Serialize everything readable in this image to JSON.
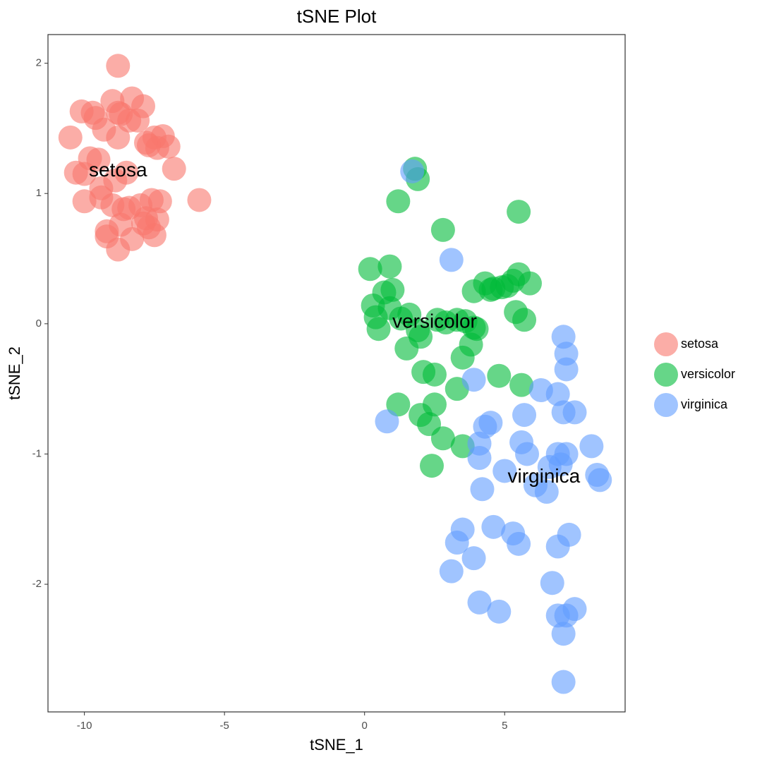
{
  "chart_data": {
    "type": "scatter",
    "title": "tSNE Plot",
    "xlabel": "tSNE_1",
    "ylabel": "tSNE_2",
    "xlim": [
      -11.3,
      9.3
    ],
    "ylim": [
      -2.98,
      2.22
    ],
    "xticks": [
      -10,
      -5,
      0,
      5
    ],
    "yticks": [
      -2,
      -1,
      0,
      1,
      2
    ],
    "grid": false,
    "legend": "right",
    "colors": {
      "setosa": "#F8766D",
      "versicolor": "#00BA38",
      "virginica": "#619CFF"
    },
    "series": [
      {
        "name": "setosa",
        "x": [
          -8.8,
          -10.5,
          -10.1,
          -9.7,
          -9.6,
          -9.0,
          -8.7,
          -8.3,
          -7.9,
          -7.5,
          -7.2,
          -9.3,
          -8.8,
          -8.4,
          -8.1,
          -7.8,
          -10.3,
          -9.8,
          -9.4,
          -8.9,
          -8.5,
          -7.7,
          -7.4,
          -7.0,
          -10.0,
          -9.4,
          -9.0,
          -8.6,
          -7.9,
          -7.6,
          -7.3,
          -6.8,
          -10.0,
          -9.5,
          -9.2,
          -8.7,
          -8.3,
          -7.8,
          -7.5,
          -5.9,
          -9.2,
          -8.8,
          -8.4,
          -8.0,
          -7.7,
          -7.4,
          -8.8
        ],
        "y": [
          1.98,
          1.43,
          1.63,
          1.62,
          1.58,
          1.71,
          1.61,
          1.73,
          1.67,
          1.43,
          1.44,
          1.49,
          1.43,
          1.56,
          1.56,
          1.39,
          1.16,
          1.27,
          1.04,
          1.1,
          1.16,
          1.37,
          1.35,
          1.36,
          0.94,
          0.97,
          0.91,
          0.88,
          0.77,
          0.95,
          0.94,
          1.19,
          1.15,
          1.26,
          0.67,
          0.76,
          0.65,
          0.81,
          0.68,
          0.95,
          0.71,
          0.57,
          0.89,
          0.91,
          0.74,
          0.8,
          1.62
        ]
      },
      {
        "name": "versicolor",
        "x": [
          1.8,
          1.9,
          1.2,
          2.8,
          5.5,
          0.2,
          0.9,
          0.7,
          1.0,
          0.3,
          0.4,
          0.5,
          0.9,
          1.3,
          1.6,
          1.9,
          2.0,
          2.6,
          2.9,
          3.3,
          3.6,
          3.9,
          4.3,
          4.6,
          4.9,
          5.3,
          5.5,
          5.9,
          3.9,
          4.5,
          5.1,
          5.4,
          5.7,
          1.5,
          2.1,
          2.5,
          3.5,
          3.8,
          4.0,
          4.8,
          5.6,
          1.2,
          2.0,
          2.3,
          2.5,
          2.8,
          3.3,
          3.5,
          2.4
        ],
        "y": [
          1.19,
          1.11,
          0.94,
          0.72,
          0.86,
          0.42,
          0.44,
          0.24,
          0.26,
          0.14,
          0.05,
          -0.04,
          0.12,
          0.04,
          0.07,
          -0.05,
          -0.1,
          0.03,
          0.01,
          0.03,
          0.02,
          0.25,
          0.31,
          0.27,
          0.28,
          0.33,
          0.38,
          0.31,
          -0.03,
          0.26,
          0.29,
          0.09,
          0.03,
          -0.19,
          -0.37,
          -0.39,
          -0.26,
          -0.16,
          -0.04,
          -0.4,
          -0.47,
          -0.62,
          -0.7,
          -0.77,
          -0.62,
          -0.88,
          -0.5,
          -0.94,
          -1.09
        ]
      },
      {
        "name": "virginica",
        "x": [
          1.7,
          3.1,
          7.1,
          7.2,
          7.2,
          3.9,
          6.3,
          6.9,
          7.5,
          5.7,
          7.1,
          0.8,
          4.5,
          4.3,
          4.1,
          5.6,
          5.8,
          4.1,
          5.0,
          6.9,
          7.2,
          6.6,
          7.0,
          8.1,
          8.3,
          8.4,
          6.1,
          6.5,
          4.2,
          3.5,
          3.3,
          4.6,
          5.3,
          5.5,
          7.3,
          6.9,
          3.9,
          3.1,
          4.1,
          4.8,
          6.7,
          7.5,
          7.2,
          6.9,
          7.1,
          7.1
        ],
        "y": [
          1.17,
          0.49,
          -0.1,
          -0.23,
          -0.35,
          -0.43,
          -0.51,
          -0.54,
          -0.68,
          -0.7,
          -0.68,
          -0.75,
          -0.76,
          -0.79,
          -0.92,
          -0.91,
          -1.0,
          -1.03,
          -1.13,
          -1.0,
          -1.0,
          -1.1,
          -1.08,
          -0.94,
          -1.16,
          -1.2,
          -1.24,
          -1.29,
          -1.27,
          -1.58,
          -1.68,
          -1.56,
          -1.61,
          -1.69,
          -1.62,
          -1.71,
          -1.8,
          -1.9,
          -2.14,
          -2.21,
          -1.99,
          -2.19,
          -2.24,
          -2.24,
          -2.38,
          -2.75
        ]
      }
    ],
    "annotations": [
      {
        "text": "setosa",
        "x": -8.8,
        "y": 1.17
      },
      {
        "text": "versicolor",
        "x": 2.5,
        "y": 0.01
      },
      {
        "text": "virginica",
        "x": 6.4,
        "y": -1.18
      }
    ]
  }
}
